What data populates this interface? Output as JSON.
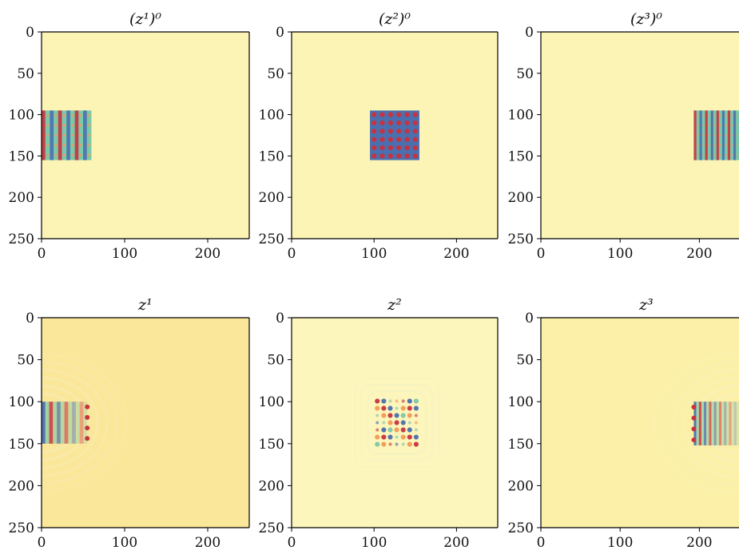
{
  "chart_data": [
    {
      "type": "heatmap",
      "title": "(z¹)⁰",
      "xlim": [
        0,
        250
      ],
      "ylim": [
        250,
        0
      ],
      "xticks": [
        "0",
        "100",
        "200"
      ],
      "yticks": [
        "0",
        "50",
        "100",
        "150",
        "200",
        "250"
      ],
      "background_color": "#fcf4b4",
      "pattern": {
        "kind": "stripes",
        "x": [
          0,
          60
        ],
        "y": [
          95,
          155
        ],
        "count": 6
      }
    },
    {
      "type": "heatmap",
      "title": "(z²)⁰",
      "xlim": [
        0,
        250
      ],
      "ylim": [
        250,
        0
      ],
      "xticks": [
        "0",
        "100",
        "200"
      ],
      "yticks": [
        "0",
        "50",
        "100",
        "150",
        "200",
        "250"
      ],
      "background_color": "#fcf4b4",
      "pattern": {
        "kind": "dots",
        "x": [
          95,
          155
        ],
        "y": [
          95,
          155
        ],
        "count": 6
      }
    },
    {
      "type": "heatmap",
      "title": "(z³)⁰",
      "xlim": [
        0,
        250
      ],
      "ylim": [
        250,
        0
      ],
      "xticks": [
        "0",
        "100",
        "200"
      ],
      "yticks": [
        "0",
        "50",
        "100",
        "150",
        "200",
        "250"
      ],
      "background_color": "#fcf4b4",
      "pattern": {
        "kind": "stripes",
        "x": [
          193,
          250
        ],
        "y": [
          95,
          155
        ],
        "count": 8
      }
    },
    {
      "type": "heatmap",
      "title": "z¹",
      "xlim": [
        0,
        250
      ],
      "ylim": [
        250,
        0
      ],
      "xticks": [
        "0",
        "100",
        "200"
      ],
      "yticks": [
        "0",
        "50",
        "100",
        "150",
        "200",
        "250"
      ],
      "background_color": "#fbe79a",
      "pattern": {
        "kind": "waves",
        "x": [
          0,
          55
        ],
        "y": [
          100,
          150
        ],
        "count": 6
      }
    },
    {
      "type": "heatmap",
      "title": "z²",
      "xlim": [
        0,
        250
      ],
      "ylim": [
        250,
        0
      ],
      "xticks": [
        "0",
        "100",
        "200"
      ],
      "yticks": [
        "0",
        "50",
        "100",
        "150",
        "200",
        "250"
      ],
      "background_color": "#fdf6bc",
      "pattern": {
        "kind": "speckle",
        "x": [
          100,
          155
        ],
        "y": [
          95,
          155
        ],
        "count": 7
      }
    },
    {
      "type": "heatmap",
      "title": "z³",
      "xlim": [
        0,
        250
      ],
      "ylim": [
        250,
        0
      ],
      "xticks": [
        "0",
        "100",
        "200"
      ],
      "yticks": [
        "0",
        "50",
        "100",
        "150",
        "200",
        "250"
      ],
      "background_color": "#fcf0a8",
      "pattern": {
        "kind": "waves-right",
        "x": [
          193,
          250
        ],
        "y": [
          100,
          152
        ],
        "count": 9
      }
    }
  ],
  "colors": {
    "red": "#c8323e",
    "blue": "#4a70b0",
    "teal": "#7cc8a8",
    "orange": "#f29a58",
    "pale": "#fcf4b4",
    "axis": "#000000"
  }
}
